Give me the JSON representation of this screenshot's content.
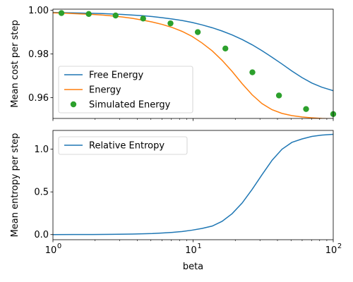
{
  "chart_data": [
    {
      "type": "line",
      "xlabel": "",
      "ylabel": "Mean cost per step",
      "xscale": "log",
      "xlim": [
        1,
        100
      ],
      "ylim": [
        0.9505,
        1.0005
      ],
      "yticks": [
        0.96,
        0.98,
        1.0
      ],
      "ytick_labels": [
        "0.96",
        "0.98",
        "1.00"
      ],
      "grid": false,
      "legend": "center-left",
      "series": [
        {
          "name": "Free Energy",
          "style": "line",
          "color": "#1f77b4",
          "x": [
            1.0,
            1.18,
            1.38,
            1.63,
            1.92,
            2.26,
            2.66,
            3.13,
            3.69,
            4.35,
            5.12,
            6.03,
            7.11,
            8.37,
            9.86,
            11.6,
            13.7,
            16.1,
            19.0,
            22.4,
            26.4,
            31.0,
            36.6,
            43.1,
            50.7,
            59.8,
            70.4,
            82.9,
            100.0
          ],
          "y": [
            0.999,
            0.9989,
            0.9988,
            0.9987,
            0.9986,
            0.9985,
            0.9983,
            0.9981,
            0.9978,
            0.9975,
            0.9971,
            0.9966,
            0.996,
            0.9953,
            0.9944,
            0.9933,
            0.992,
            0.9905,
            0.9887,
            0.9866,
            0.9842,
            0.9815,
            0.9785,
            0.9754,
            0.9722,
            0.9692,
            0.9667,
            0.9648,
            0.9632
          ]
        },
        {
          "name": "Energy",
          "style": "line",
          "color": "#ff7f0e",
          "x": [
            1.0,
            1.18,
            1.38,
            1.63,
            1.92,
            2.26,
            2.66,
            3.13,
            3.69,
            4.35,
            5.12,
            6.03,
            7.11,
            8.37,
            9.86,
            11.6,
            13.7,
            16.1,
            19.0,
            22.4,
            26.4,
            31.0,
            36.6,
            43.1,
            50.7,
            59.8,
            70.4,
            82.9,
            100.0
          ],
          "y": [
            0.9988,
            0.9987,
            0.9985,
            0.9983,
            0.9981,
            0.9978,
            0.9974,
            0.9969,
            0.9963,
            0.9955,
            0.9946,
            0.9935,
            0.9921,
            0.9903,
            0.988,
            0.985,
            0.9814,
            0.9771,
            0.972,
            0.9664,
            0.9613,
            0.9573,
            0.9545,
            0.9528,
            0.9518,
            0.9512,
            0.9508,
            0.9505,
            0.9503
          ]
        },
        {
          "name": "Simulated Energy",
          "style": "markers",
          "color": "#2ca02c",
          "x": [
            1.15,
            1.8,
            2.8,
            4.4,
            6.9,
            10.8,
            17.0,
            26.5,
            41.0,
            64.0,
            100.0
          ],
          "y": [
            0.9987,
            0.9983,
            0.9976,
            0.9962,
            0.994,
            0.99,
            0.9825,
            0.9716,
            0.961,
            0.9548,
            0.9525
          ]
        }
      ]
    },
    {
      "type": "line",
      "xlabel": "beta",
      "ylabel": "Mean entropy per step",
      "xscale": "log",
      "xlim": [
        1,
        100
      ],
      "xticks": [
        1,
        10,
        100
      ],
      "xtick_labels": [
        {
          "base": "10",
          "exp": "0"
        },
        {
          "base": "10",
          "exp": "1"
        },
        {
          "base": "10",
          "exp": "2"
        }
      ],
      "ylim": [
        -0.06,
        1.22
      ],
      "yticks": [
        0.0,
        0.5,
        1.0
      ],
      "ytick_labels": [
        "0.0",
        "0.5",
        "1.0"
      ],
      "grid": false,
      "legend": "top-left",
      "series": [
        {
          "name": "Relative Entropy",
          "style": "line",
          "color": "#1f77b4",
          "x": [
            1.0,
            1.38,
            1.92,
            2.66,
            3.69,
            5.12,
            6.03,
            7.11,
            8.37,
            9.86,
            11.6,
            13.7,
            16.1,
            19.0,
            22.4,
            26.4,
            31.0,
            36.6,
            43.1,
            50.7,
            59.8,
            70.4,
            82.9,
            100.0
          ],
          "y": [
            0.0,
            0.0005,
            0.001,
            0.003,
            0.006,
            0.012,
            0.018,
            0.026,
            0.036,
            0.052,
            0.072,
            0.1,
            0.155,
            0.245,
            0.37,
            0.53,
            0.7,
            0.87,
            1.0,
            1.08,
            1.12,
            1.15,
            1.165,
            1.175
          ]
        }
      ]
    }
  ]
}
